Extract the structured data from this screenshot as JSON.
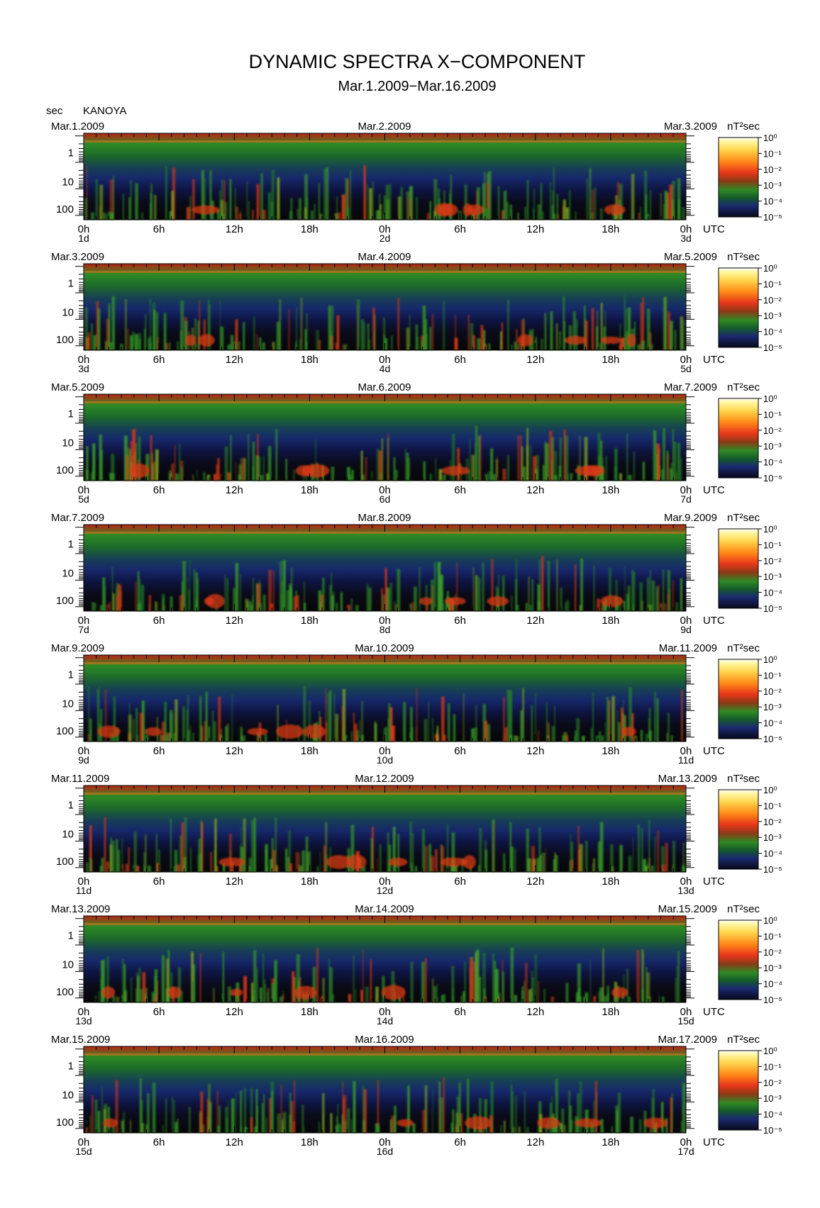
{
  "figure": {
    "title": "DYNAMIC SPECTRA X−COMPONENT",
    "subtitle": "Mar.1.2009−Mar.16.2009",
    "ylabel_unit": "sec",
    "station": "KANOYA",
    "utc_label": "UTC",
    "colorbar_unit": "nT²sec"
  },
  "chart_data": {
    "type": "heatmap",
    "x_ticks": [
      "0h",
      "6h",
      "12h",
      "18h",
      "0h",
      "6h",
      "12h",
      "18h",
      "0h"
    ],
    "y_ticks": [
      "1",
      "10",
      "100"
    ],
    "colorbar": {
      "ticks": [
        "10⁰",
        "10⁻¹",
        "10⁻²",
        "10⁻³",
        "10⁻⁴",
        "10⁻⁵"
      ],
      "range": [
        1e-05,
        1
      ],
      "scale": "log",
      "colors": [
        "#0a0a20",
        "#1a2a70",
        "#15602a",
        "#2f8f26",
        "#7a6a1a",
        "#c8281a",
        "#ff3a10",
        "#ffa020",
        "#ffee60"
      ]
    },
    "panels": [
      {
        "start": "Mar.1.2009",
        "mid": "Mar.2.2009",
        "end": "Mar.3.2009",
        "day_start": "1d",
        "day_mid": "2d",
        "day_end": "3d"
      },
      {
        "start": "Mar.3.2009",
        "mid": "Mar.4.2009",
        "end": "Mar.5.2009",
        "day_start": "3d",
        "day_mid": "4d",
        "day_end": "5d"
      },
      {
        "start": "Mar.5.2009",
        "mid": "Mar.6.2009",
        "end": "Mar.7.2009",
        "day_start": "5d",
        "day_mid": "6d",
        "day_end": "7d"
      },
      {
        "start": "Mar.7.2009",
        "mid": "Mar.8.2009",
        "end": "Mar.9.2009",
        "day_start": "7d",
        "day_mid": "8d",
        "day_end": "9d"
      },
      {
        "start": "Mar.9.2009",
        "mid": "Mar.10.2009",
        "end": "Mar.11.2009",
        "day_start": "9d",
        "day_mid": "10d",
        "day_end": "11d"
      },
      {
        "start": "Mar.11.2009",
        "mid": "Mar.12.2009",
        "end": "Mar.13.2009",
        "day_start": "11d",
        "day_mid": "12d",
        "day_end": "13d"
      },
      {
        "start": "Mar.13.2009",
        "mid": "Mar.14.2009",
        "end": "Mar.15.2009",
        "day_start": "13d",
        "day_mid": "14d",
        "day_end": "15d"
      },
      {
        "start": "Mar.15.2009",
        "mid": "Mar.16.2009",
        "end": "Mar.17.2009",
        "day_start": "15d",
        "day_mid": "16d",
        "day_end": "17d"
      }
    ]
  }
}
